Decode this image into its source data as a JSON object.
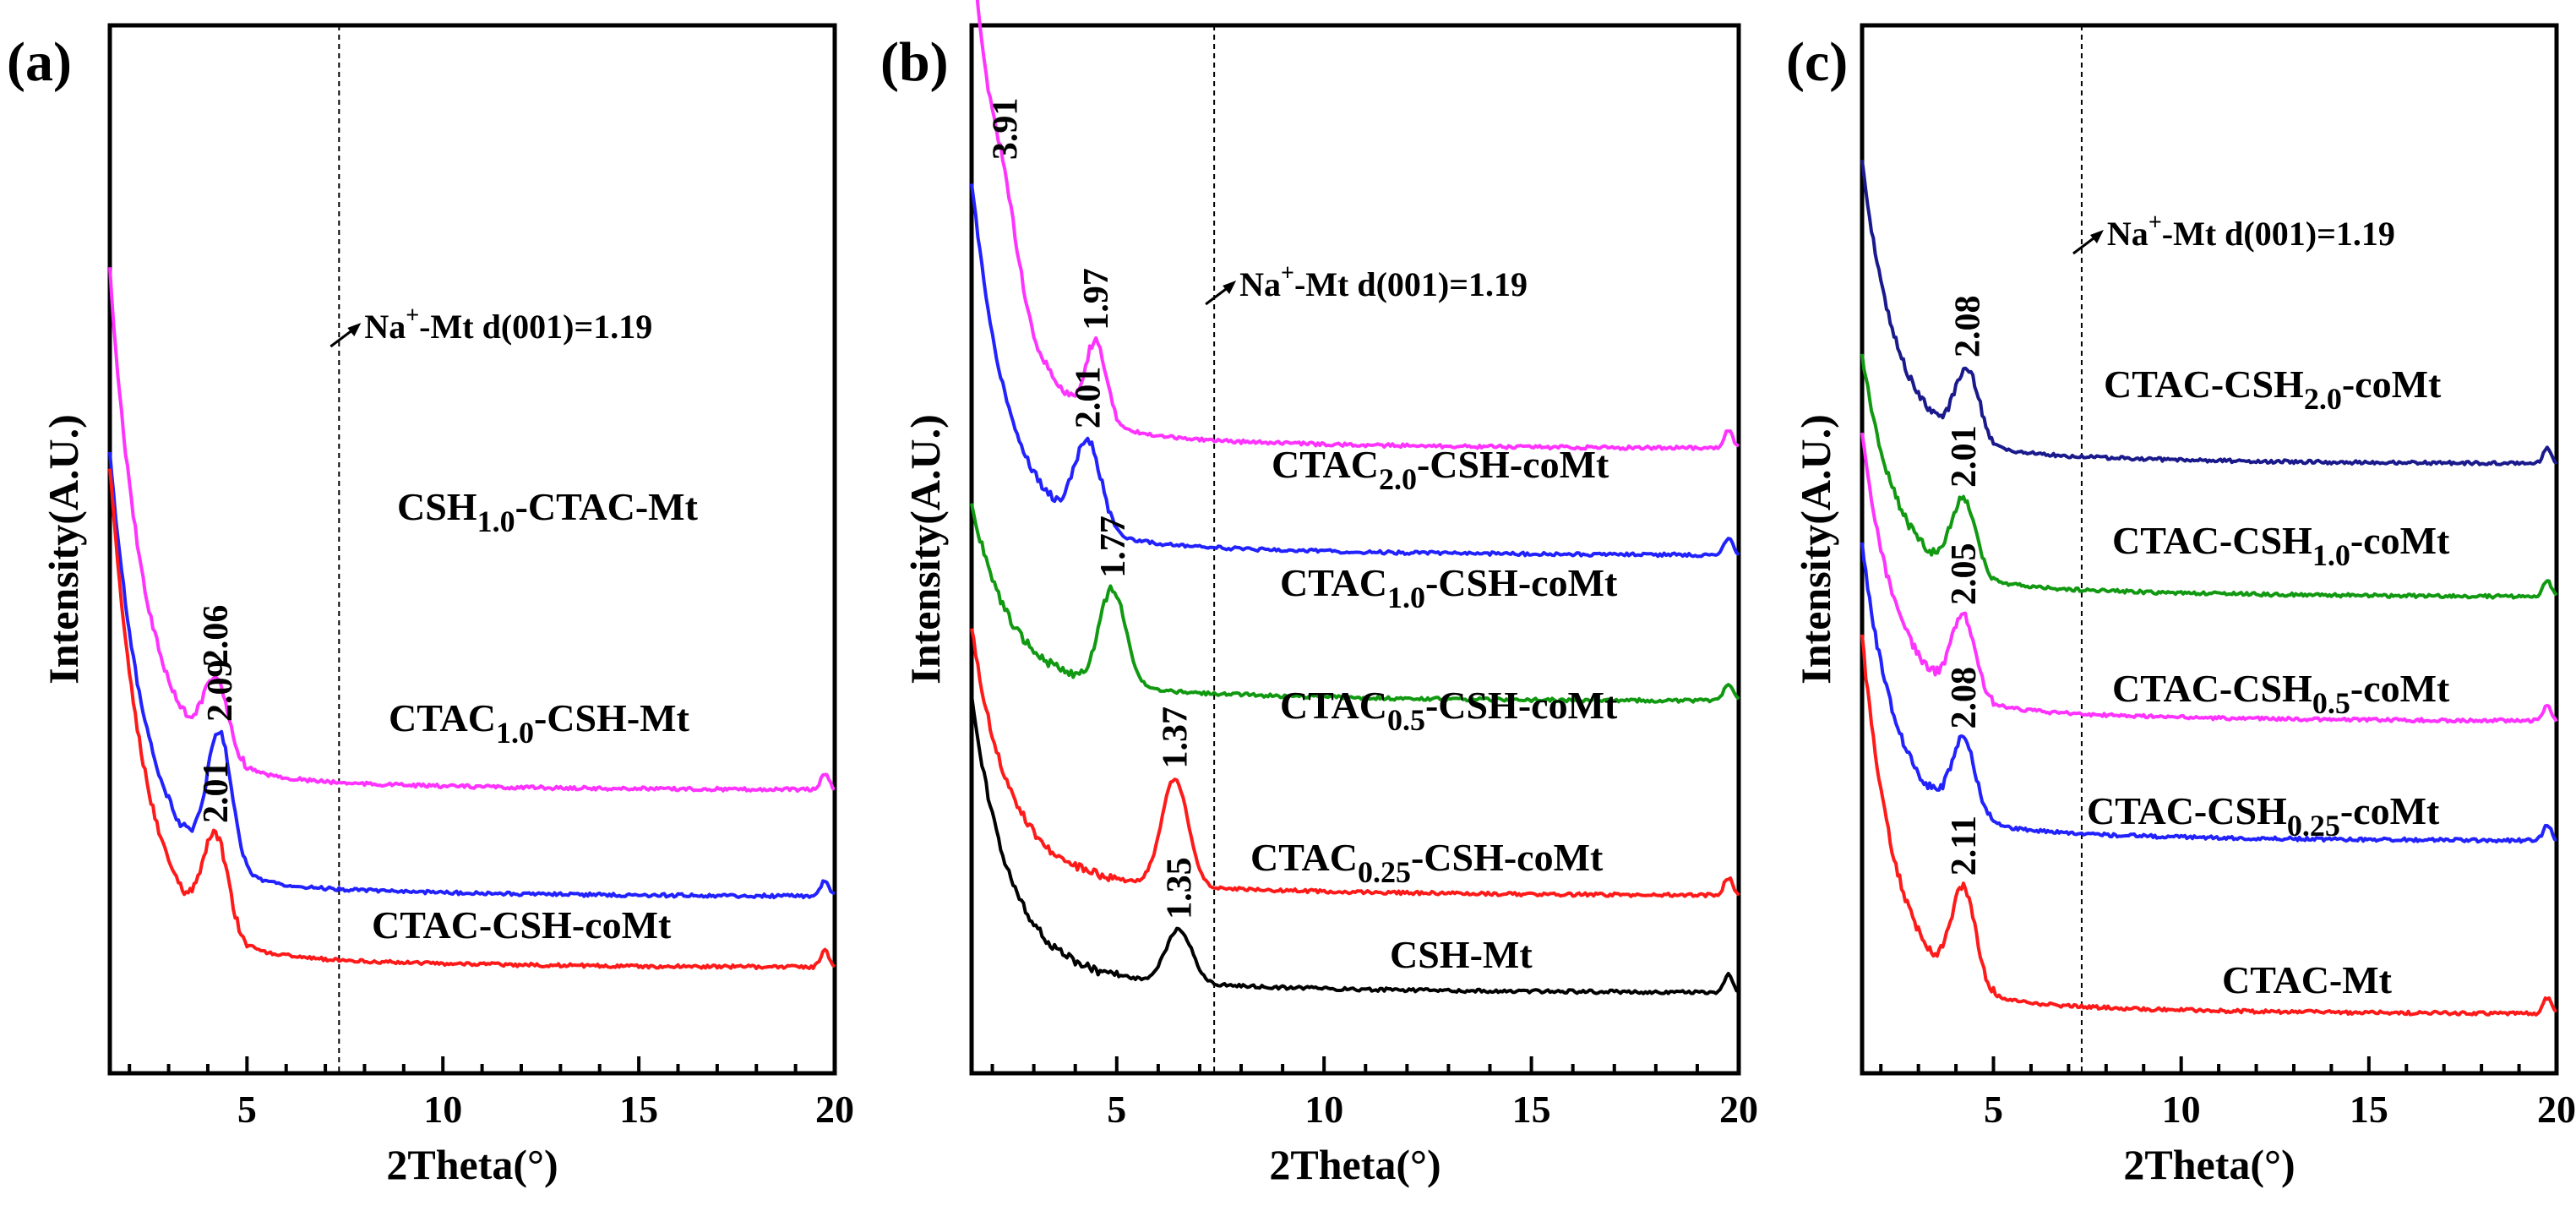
{
  "figure": {
    "xlabel": "2Theta(°)",
    "ylabel": "Intensity(A.U.)",
    "xticks": [
      5,
      10,
      15,
      20
    ],
    "xlim": [
      1.5,
      20
    ],
    "note": {
      "prefix": "Na",
      "sup": "+",
      "suffix": "-Mt d(001)=1.19",
      "x": 7.35
    }
  },
  "chart_data": [
    {
      "panel": "(a)",
      "type": "line",
      "x_range": [
        1.5,
        20
      ],
      "series": [
        {
          "name": "CSH1.0-CTAC-Mt",
          "label_main": "CSH",
          "label_sub": "1.0",
          "label_tail": "-CTAC-Mt",
          "color": "#ff33ff",
          "start": 560,
          "peak_x": 4.2,
          "peak_height": 85,
          "peak_label": "2.06",
          "baseline": 200
        },
        {
          "name": "CTAC1.0-CSH-Mt",
          "label_main": "CTAC",
          "label_sub": "1.0",
          "label_tail": "-CSH-Mt",
          "color": "#2222ff",
          "start": 480,
          "peak_x": 4.3,
          "peak_height": 150,
          "peak_label": "2.09",
          "baseline": 80
        },
        {
          "name": "CTAC-CSH-coMt",
          "label_main": "CTAC-CSH-coMt",
          "label_sub": "",
          "label_tail": "",
          "color": "#ff1a1a",
          "start": 540,
          "peak_x": 4.2,
          "peak_height": 110,
          "peak_label": "2.01",
          "baseline": 0
        }
      ]
    },
    {
      "panel": "(b)",
      "type": "line",
      "x_range": [
        1.5,
        20
      ],
      "series": [
        {
          "name": "CTAC2.0-CSH-coMt",
          "label_main": "CTAC",
          "label_sub": "2.0",
          "label_tail": "-CSH-coMt",
          "color": "#ff33ff",
          "start": 500,
          "peak_x": 2.3,
          "peak_height": 60,
          "peak_label": "3.91",
          "peak2_x": 4.5,
          "peak2_height": 80,
          "peak2_label": "1.97",
          "baseline": 560
        },
        {
          "name": "CTAC1.0-CSH-coMt",
          "label_main": "CTAC",
          "label_sub": "1.0",
          "label_tail": "-CSH-coMt",
          "color": "#2222ff",
          "start": 360,
          "peak_x": 4.3,
          "peak_height": 90,
          "peak_label": "2.01",
          "baseline": 450
        },
        {
          "name": "CTAC0.5-CSH-coMt",
          "label_main": "CTAC",
          "label_sub": "0.5",
          "label_tail": "-CSH-coMt",
          "color": "#119911",
          "start": 180,
          "peak_x": 4.9,
          "peak_height": 100,
          "peak_label": "1.77",
          "baseline": 300
        },
        {
          "name": "CTAC0.25-CSH-coMt",
          "label_main": "CTAC",
          "label_sub": "0.25",
          "label_tail": "-CSH-coMt",
          "color": "#ff1a1a",
          "start": 250,
          "peak_x": 6.4,
          "peak_height": 110,
          "peak_label": "1.37",
          "baseline": 100
        },
        {
          "name": "CSH-Mt",
          "label_main": "CSH-Mt",
          "label_sub": "",
          "label_tail": "",
          "color": "#000000",
          "start": 280,
          "peak_x": 6.5,
          "peak_height": 55,
          "peak_label": "1.35",
          "baseline": 0
        }
      ]
    },
    {
      "panel": "(c)",
      "type": "line",
      "x_range": [
        1.5,
        20
      ],
      "series": [
        {
          "name": "CTAC-CSH2.0-coMt",
          "label_main": "CTAC-CSH",
          "label_sub": "2.0",
          "label_tail": "-coMt",
          "color": "#1a1a8c",
          "start": 320,
          "peak_x": 4.3,
          "peak_height": 80,
          "peak_label": "2.08",
          "baseline": 620
        },
        {
          "name": "CTAC-CSH1.0-coMt",
          "label_main": "CTAC-CSH",
          "label_sub": "1.0",
          "label_tail": "-coMt",
          "color": "#119911",
          "start": 250,
          "peak_x": 4.2,
          "peak_height": 85,
          "peak_label": "2.01",
          "baseline": 470
        },
        {
          "name": "CTAC-CSH0.5-coMt",
          "label_main": "CTAC-CSH",
          "label_sub": "0.5",
          "label_tail": "-coMt",
          "color": "#ff33ff",
          "start": 300,
          "peak_x": 4.2,
          "peak_height": 90,
          "peak_label": "2.05",
          "baseline": 330
        },
        {
          "name": "CTAC-CSH0.25-coMt",
          "label_main": "CTAC-CSH",
          "label_sub": "0.25",
          "label_tail": "-coMt",
          "color": "#2222ff",
          "start": 310,
          "peak_x": 4.2,
          "peak_height": 85,
          "peak_label": "2.08",
          "baseline": 195
        },
        {
          "name": "CTAC-Mt",
          "label_main": "CTAC-Mt",
          "label_sub": "",
          "label_tail": "",
          "color": "#ff1a1a",
          "start": 400,
          "peak_x": 4.2,
          "peak_height": 110,
          "peak_label": "2.11",
          "baseline": 0
        }
      ]
    }
  ]
}
